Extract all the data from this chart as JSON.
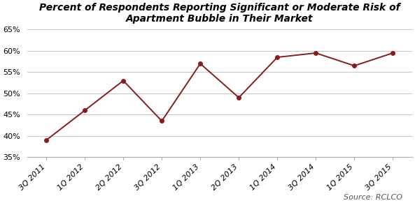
{
  "title": "Percent of Respondents Reporting Significant or Moderate Risk of\nApartment Bubble in Their Market",
  "categories": [
    "3Q 2011",
    "1Q 2012",
    "2Q 2012",
    "3Q 2012",
    "1Q 2013",
    "2Q 2013",
    "1Q 2014",
    "3Q 2014",
    "1Q 2015",
    "3Q 2015"
  ],
  "values": [
    0.39,
    0.46,
    0.53,
    0.435,
    0.57,
    0.49,
    0.585,
    0.595,
    0.565,
    0.595
  ],
  "line_color": "#8B1A1A",
  "marker": "o",
  "marker_size": 4,
  "linewidth": 1.4,
  "ylim": [
    0.35,
    0.65
  ],
  "yticks": [
    0.35,
    0.4,
    0.45,
    0.5,
    0.55,
    0.6,
    0.65
  ],
  "source_text": "Source: RCLCO",
  "title_fontsize": 10,
  "tick_fontsize": 8,
  "source_fontsize": 8,
  "bg_color": "#ffffff",
  "grid_color": "#bbbbbb"
}
